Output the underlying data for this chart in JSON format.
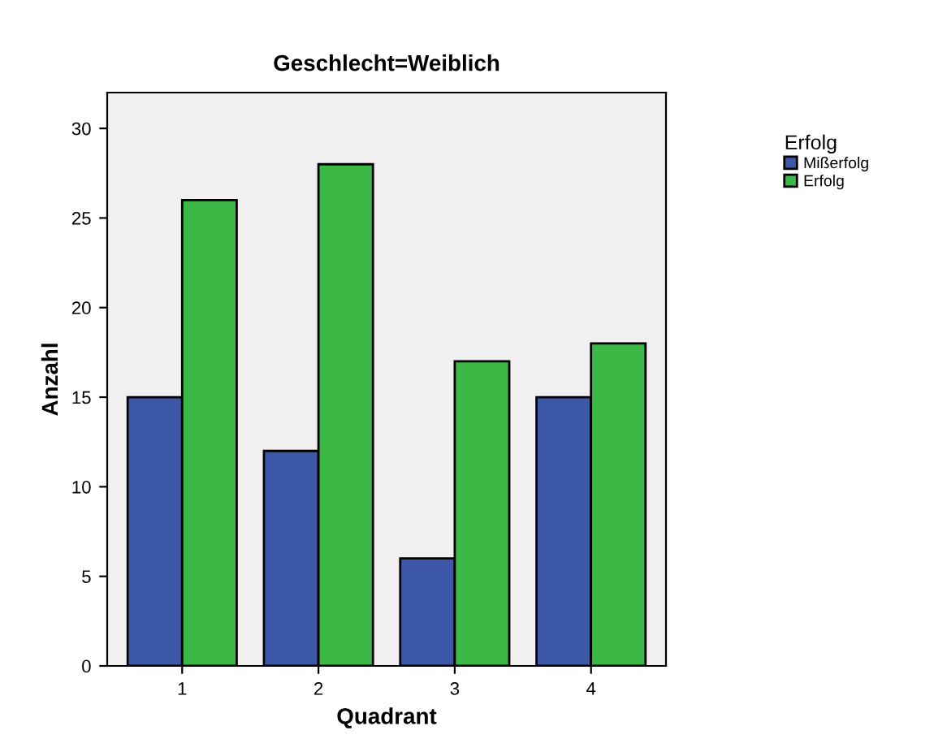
{
  "chart_data": {
    "type": "bar",
    "title": "Geschlecht=Weiblich",
    "xlabel": "Quadrant",
    "ylabel": "Anzahl",
    "legend_title": "Erfolg",
    "categories": [
      "1",
      "2",
      "3",
      "4"
    ],
    "series": [
      {
        "name": "Mißerfolg",
        "color": "#3d58a8",
        "values": [
          15,
          12,
          6,
          15
        ]
      },
      {
        "name": "Erfolg",
        "color": "#3cb846",
        "values": [
          26,
          28,
          17,
          18
        ]
      }
    ],
    "ylim": [
      0,
      32
    ],
    "yticks": [
      0,
      5,
      10,
      15,
      20,
      25,
      30
    ],
    "grid": false,
    "legend": "top right"
  }
}
